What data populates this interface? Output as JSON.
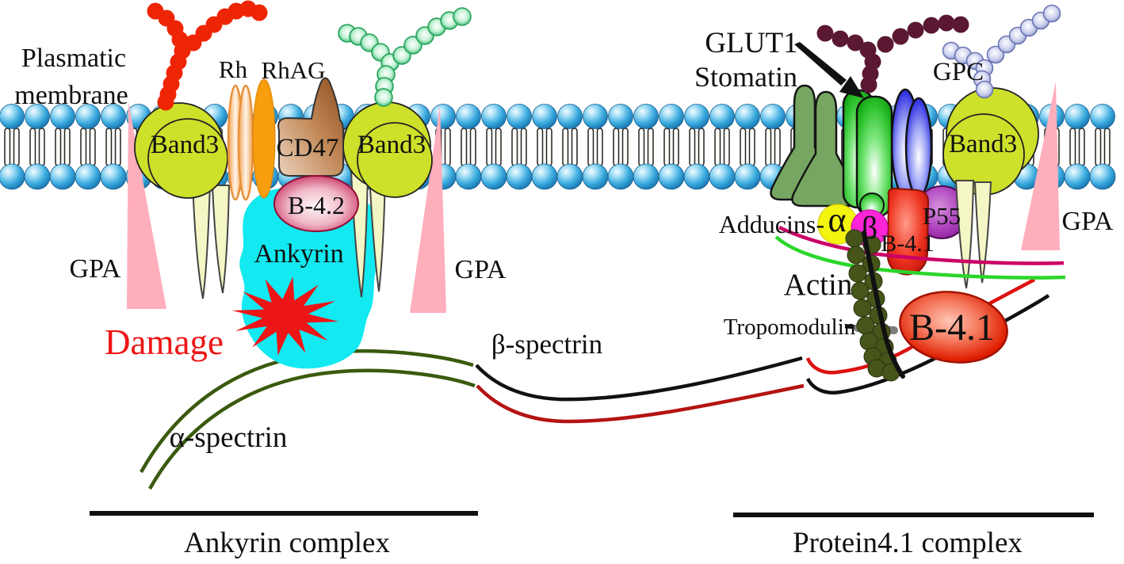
{
  "diagram": {
    "labels": {
      "plasmatic_line1": "Plasmatic",
      "plasmatic_line2": "membrane",
      "band3": "Band3",
      "rh": "Rh",
      "rhag": "RhAG",
      "cd47": "CD47",
      "b42": "B-4.2",
      "ankyrin": "Ankyrin",
      "gpa": "GPA",
      "damage": "Damage",
      "alpha_spectrin": "α-spectrin",
      "beta_spectrin": "β-spectrin",
      "glut1": "GLUT1",
      "stomatin": "Stomatin",
      "gpc": "GPC",
      "adducins_prefix": "Adducins-",
      "alpha": "α",
      "beta": "β",
      "p55": "P55",
      "b41": "B-4.1",
      "actin": "Actin",
      "tropomodulin": "Tropomodulin",
      "ankyrin_complex": "Ankyrin complex",
      "protein41_complex": "Protein4.1 complex"
    },
    "colors": {
      "membrane_head": "#3aaade",
      "band3": "#cde02a",
      "band3_tail": "#f4f7c5",
      "rh": "#f2a85c",
      "rhag": "#f89d0e",
      "cd47": "#a05a28",
      "b42_edge": "#c21a50",
      "ankyrin": "#12e9f0",
      "damage_red": "#ed1515",
      "gpa_pink": "#ffaebb",
      "alpha_spectrin_green": "#3a5a0e",
      "beta_spectrin_black": "#111111",
      "beta_spectrin_red": "#b51313",
      "stomatin": "#76a661",
      "glut1": "#2cc22c",
      "gpc": "#2a2ae0",
      "adducin_alpha_yellow": "#f4f411",
      "adducin_beta_magenta": "#fb25d7",
      "p55_purple": "#a020a8",
      "b41_red": "#e01e00",
      "actin_olive": "#46551a",
      "tropomodulin_gray": "#7d7d7d",
      "junction_green": "#2bd62b",
      "junction_pink": "#cc0066",
      "red_glycan": "#ee2505",
      "maroon_glycan": "#5a1832"
    }
  }
}
